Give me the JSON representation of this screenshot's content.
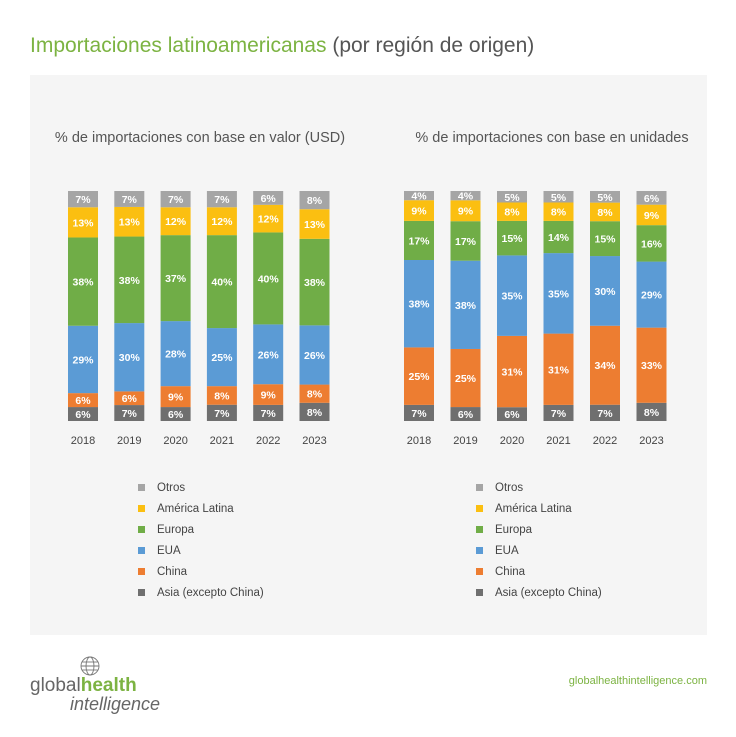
{
  "header": {
    "title_main": "Importaciones latinoamericanas",
    "title_sub": "(por región de origen)"
  },
  "footer": {
    "logo_line1_a": "global",
    "logo_line1_b": "health",
    "logo_line2": "intelligence",
    "site": "globalhealthintelligence.com"
  },
  "colors": {
    "Otros": "#a5a5a5",
    "America_Latina": "#fbbf11",
    "Europa": "#70ad47",
    "EUA": "#5b9bd5",
    "China": "#ed7d31",
    "Asia": "#6f6f6f",
    "accent": "#7cb342"
  },
  "chart_data": [
    {
      "type": "bar",
      "stacked": true,
      "title": "% de importaciones con base en valor (USD)",
      "categories": [
        "2018",
        "2019",
        "2020",
        "2021",
        "2022",
        "2023"
      ],
      "legend_position": "bottom",
      "series": [
        {
          "name": "Asia (excepto China)",
          "key": "Asia",
          "values": [
            6,
            7,
            6,
            7,
            7,
            8
          ]
        },
        {
          "name": "China",
          "key": "China",
          "values": [
            6,
            6,
            9,
            8,
            9,
            8
          ]
        },
        {
          "name": "EUA",
          "key": "EUA",
          "values": [
            29,
            30,
            28,
            25,
            26,
            26
          ]
        },
        {
          "name": "Europa",
          "key": "Europa",
          "values": [
            38,
            38,
            37,
            40,
            40,
            38
          ]
        },
        {
          "name": "América Latina",
          "key": "America_Latina",
          "values": [
            13,
            13,
            12,
            12,
            12,
            13
          ]
        },
        {
          "name": "Otros",
          "key": "Otros",
          "values": [
            7,
            7,
            7,
            7,
            6,
            8
          ]
        }
      ]
    },
    {
      "type": "bar",
      "stacked": true,
      "title": "% de importaciones con base en unidades",
      "categories": [
        "2018",
        "2019",
        "2020",
        "2021",
        "2022",
        "2023"
      ],
      "legend_position": "bottom",
      "series": [
        {
          "name": "Asia (excepto China)",
          "key": "Asia",
          "values": [
            7,
            6,
            6,
            7,
            7,
            8
          ]
        },
        {
          "name": "China",
          "key": "China",
          "values": [
            25,
            25,
            31,
            31,
            34,
            33
          ]
        },
        {
          "name": "EUA",
          "key": "EUA",
          "values": [
            38,
            38,
            35,
            35,
            30,
            29
          ]
        },
        {
          "name": "Europa",
          "key": "Europa",
          "values": [
            17,
            17,
            15,
            14,
            15,
            16
          ]
        },
        {
          "name": "América Latina",
          "key": "America_Latina",
          "values": [
            9,
            9,
            8,
            8,
            8,
            9
          ]
        },
        {
          "name": "Otros",
          "key": "Otros",
          "values": [
            4,
            4,
            5,
            5,
            5,
            6
          ]
        }
      ]
    }
  ],
  "legend_order": [
    "Otros",
    "America_Latina",
    "Europa",
    "EUA",
    "China",
    "Asia"
  ]
}
